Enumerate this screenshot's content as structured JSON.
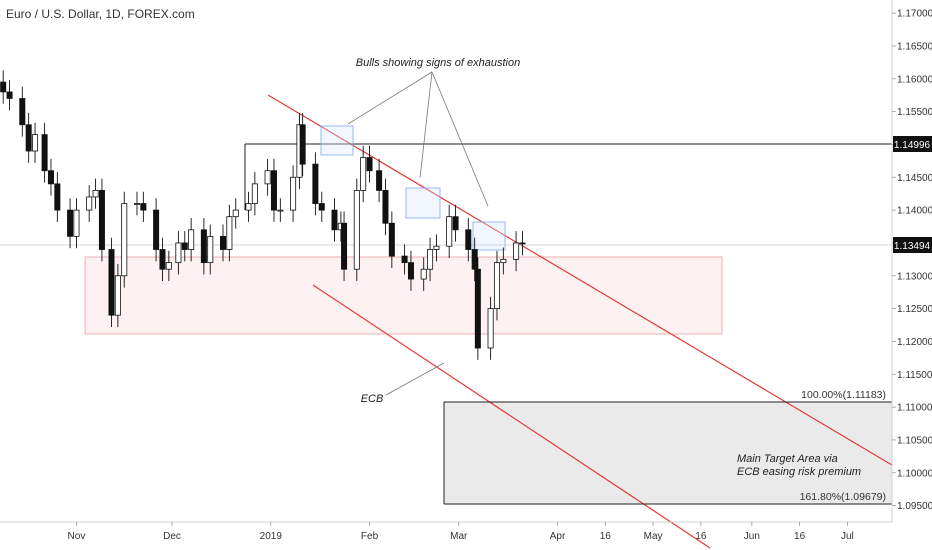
{
  "chart_data": {
    "type": "candlestick",
    "title": "Euro / U.S. Dollar, 1D, FOREX.com",
    "y_axis": {
      "ylim": [
        1.0925,
        1.172
      ],
      "ticks": [
        "1.17000",
        "1.16500",
        "1.16000",
        "1.15500",
        "1.15000",
        "1.14500",
        "1.14000",
        "1.13500",
        "1.13000",
        "1.12500",
        "1.12000",
        "1.11500",
        "1.11000",
        "1.10500",
        "1.10000",
        "1.09500"
      ],
      "tick_values": [
        1.17,
        1.165,
        1.16,
        1.155,
        1.15,
        1.145,
        1.14,
        1.135,
        1.13,
        1.125,
        1.12,
        1.115,
        1.11,
        1.105,
        1.1,
        1.095
      ],
      "current_price_label": "1.13494",
      "current_price": 1.13494,
      "resistance_label": "1.14996",
      "resistance": 1.14996
    },
    "x_axis": {
      "range": [
        "2018-10-08",
        "2019-07-15"
      ],
      "ticks": [
        {
          "label": "Nov",
          "date": "2018-11-01"
        },
        {
          "label": "Dec",
          "date": "2018-12-01"
        },
        {
          "label": "2019",
          "date": "2019-01-01"
        },
        {
          "label": "Feb",
          "date": "2019-02-01"
        },
        {
          "label": "Mar",
          "date": "2019-03-01"
        },
        {
          "label": "Apr",
          "date": "2019-04-01"
        },
        {
          "label": "16",
          "date": "2019-04-16"
        },
        {
          "label": "May",
          "date": "2019-05-01"
        },
        {
          "label": "16",
          "date": "2019-05-16"
        },
        {
          "label": "Jun",
          "date": "2019-06-01"
        },
        {
          "label": "16",
          "date": "2019-06-16"
        },
        {
          "label": "Jul",
          "date": "2019-07-01"
        }
      ]
    },
    "close_series": [
      [
        "2018-10-09",
        1.158
      ],
      [
        "2018-10-11",
        1.157
      ],
      [
        "2018-10-15",
        1.153
      ],
      [
        "2018-10-17",
        1.149
      ],
      [
        "2018-10-19",
        1.1515
      ],
      [
        "2018-10-22",
        1.146
      ],
      [
        "2018-10-24",
        1.144
      ],
      [
        "2018-10-26",
        1.14
      ],
      [
        "2018-10-30",
        1.136
      ],
      [
        "2018-11-01",
        1.14
      ],
      [
        "2018-11-05",
        1.142
      ],
      [
        "2018-11-07",
        1.143
      ],
      [
        "2018-11-09",
        1.134
      ],
      [
        "2018-11-12",
        1.124
      ],
      [
        "2018-11-14",
        1.13
      ],
      [
        "2018-11-16",
        1.141
      ],
      [
        "2018-11-20",
        1.141
      ],
      [
        "2018-11-22",
        1.14
      ],
      [
        "2018-11-26",
        1.134
      ],
      [
        "2018-11-28",
        1.131
      ],
      [
        "2018-11-30",
        1.132
      ],
      [
        "2018-12-03",
        1.135
      ],
      [
        "2018-12-05",
        1.134
      ],
      [
        "2018-12-07",
        1.137
      ],
      [
        "2018-12-11",
        1.132
      ],
      [
        "2018-12-13",
        1.136
      ],
      [
        "2018-12-17",
        1.134
      ],
      [
        "2018-12-19",
        1.139
      ],
      [
        "2018-12-21",
        1.14
      ],
      [
        "2018-12-25",
        1.141
      ],
      [
        "2018-12-27",
        1.144
      ],
      [
        "2018-12-31",
        1.146
      ],
      [
        "2019-01-02",
        1.14
      ],
      [
        "2019-01-04",
        1.14
      ],
      [
        "2019-01-08",
        1.145
      ],
      [
        "2019-01-10",
        1.153
      ],
      [
        "2019-01-11",
        1.147
      ],
      [
        "2019-01-15",
        1.141
      ],
      [
        "2019-01-17",
        1.14
      ],
      [
        "2019-01-21",
        1.137
      ],
      [
        "2019-01-23",
        1.138
      ],
      [
        "2019-01-24",
        1.131
      ],
      [
        "2019-01-28",
        1.143
      ],
      [
        "2019-01-30",
        1.148
      ],
      [
        "2019-02-01",
        1.146
      ],
      [
        "2019-02-04",
        1.143
      ],
      [
        "2019-02-06",
        1.138
      ],
      [
        "2019-02-08",
        1.133
      ],
      [
        "2019-02-12",
        1.132
      ],
      [
        "2019-02-14",
        1.1295
      ],
      [
        "2019-02-18",
        1.131
      ],
      [
        "2019-02-20",
        1.134
      ],
      [
        "2019-02-22",
        1.1345
      ],
      [
        "2019-02-26",
        1.139
      ],
      [
        "2019-02-28",
        1.137
      ],
      [
        "2019-03-04",
        1.134
      ],
      [
        "2019-03-06",
        1.131
      ],
      [
        "2019-03-07",
        1.119
      ],
      [
        "2019-03-11",
        1.125
      ],
      [
        "2019-03-13",
        1.132
      ],
      [
        "2019-03-15",
        1.1325
      ],
      [
        "2019-03-19",
        1.135
      ],
      [
        "2019-03-21",
        1.1349
      ]
    ],
    "annotations": {
      "bulls_text": "Bulls showing signs of exhaustion",
      "ecb_text": "ECB",
      "target_line1": "Main Target Area via",
      "target_line2": "ECB easing risk premium",
      "fib_100_label": "100.00%(1.11183)",
      "fib_100": 1.11183,
      "fib_161_label": "161.80%(1.09679)",
      "fib_161": 1.09679
    },
    "grid": false,
    "legend": "none"
  }
}
